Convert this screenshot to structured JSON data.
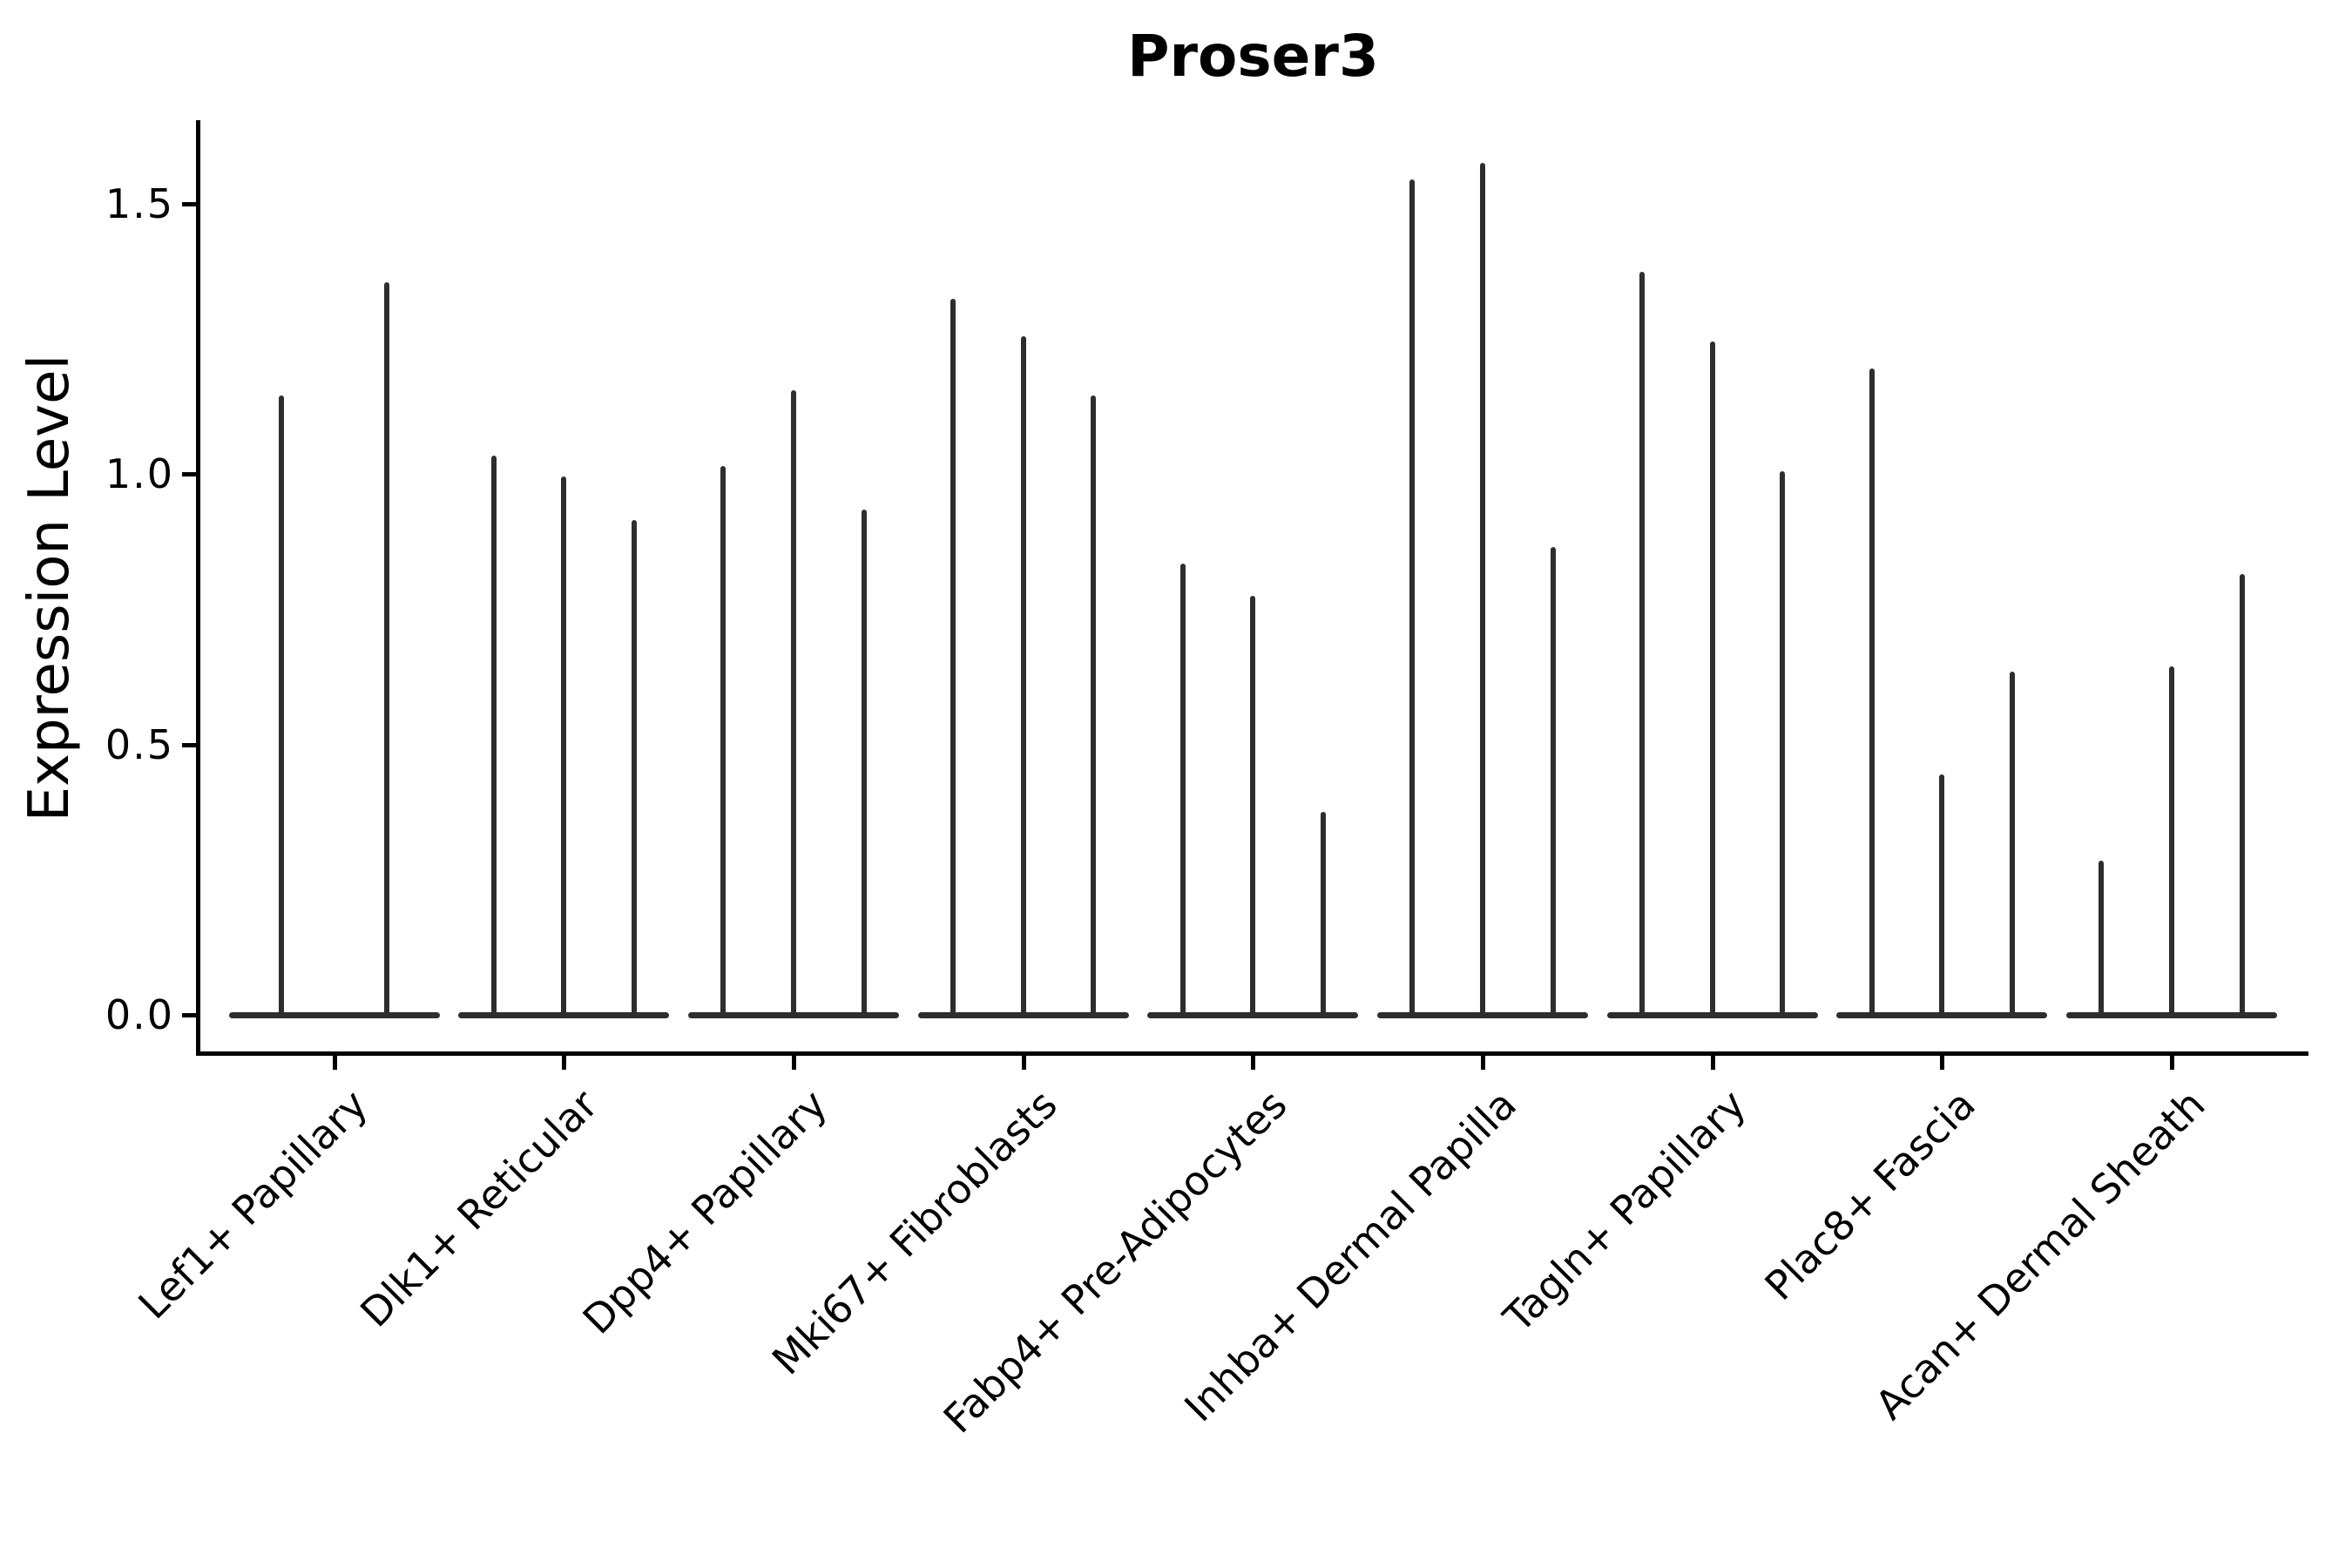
{
  "page": {
    "background": "#ffffff"
  },
  "chart_data": {
    "type": "violin",
    "title": "Proser3",
    "ylabel": "Expression Level",
    "xlabel": "",
    "yticks": [
      0.0,
      0.5,
      1.0,
      1.5
    ],
    "ylim": [
      -0.07,
      1.65
    ],
    "grid": false,
    "legend_position": "none",
    "categories": [
      "Lef1+ Papillary",
      "Dlk1+ Reticular",
      "Dpp4+ Papillary",
      "Mki67+ Fibroblasts",
      "Fabp4+ Pre-Adipocytes",
      "Inhba+ Dermal Papilla",
      "Tagln+ Papillary",
      "Plac8+ Fascia",
      "Acan+ Dermal Sheath"
    ],
    "groups": [
      {
        "category": "Lef1+ Papillary",
        "violin_maxima": [
          1.14,
          1.35
        ]
      },
      {
        "category": "Dlk1+ Reticular",
        "violin_maxima": [
          1.03,
          0.99,
          0.91
        ]
      },
      {
        "category": "Dpp4+ Papillary",
        "violin_maxima": [
          1.01,
          1.15,
          0.93
        ]
      },
      {
        "category": "Mki67+ Fibroblasts",
        "violin_maxima": [
          1.32,
          1.25,
          1.14
        ]
      },
      {
        "category": "Fabp4+ Pre-Adipocytes",
        "violin_maxima": [
          0.83,
          0.77,
          0.37
        ]
      },
      {
        "category": "Inhba+ Dermal Papilla",
        "violin_maxima": [
          1.54,
          1.57,
          0.86
        ]
      },
      {
        "category": "Tagln+ Papillary",
        "violin_maxima": [
          1.37,
          1.24,
          1.0
        ]
      },
      {
        "category": "Plac8+ Fascia",
        "violin_maxima": [
          1.19,
          0.44,
          0.63
        ]
      },
      {
        "category": "Acan+ Dermal Sheath",
        "violin_maxima": [
          0.28,
          0.64,
          0.81
        ]
      }
    ],
    "baseline_value": 0.0,
    "style": {
      "violin_line_color": "#2e2e2e",
      "axis_color": "#000000",
      "background": "#ffffff"
    }
  }
}
